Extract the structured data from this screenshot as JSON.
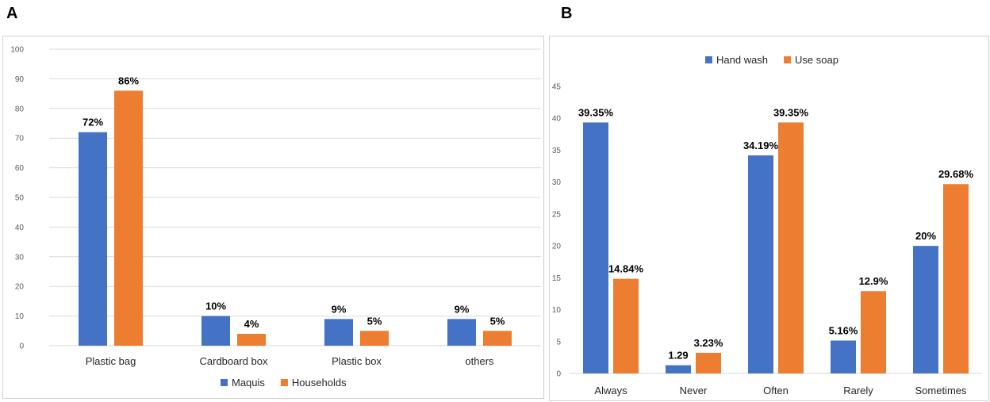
{
  "panels": {
    "a": "A",
    "b": "B"
  },
  "colors": {
    "blue": "#4472C4",
    "orange": "#ED7D31",
    "grid": "#D9D9D9"
  },
  "chart_data": [
    {
      "type": "bar",
      "panel": "A",
      "title": "",
      "xlabel": "",
      "ylabel": "",
      "categories": [
        "Plastic bag",
        "Cardboard box",
        "Plastic box",
        "others"
      ],
      "series": [
        {
          "name": "Maquis",
          "values": [
            72,
            10,
            9,
            9
          ],
          "labels": [
            "72%",
            "10%",
            "9%",
            "9%"
          ]
        },
        {
          "name": "Households",
          "values": [
            86,
            4,
            5,
            5
          ],
          "labels": [
            "86%",
            "4%",
            "5%",
            "5%"
          ]
        }
      ],
      "yticks": [
        0,
        10,
        20,
        30,
        40,
        50,
        60,
        70,
        80,
        90,
        100
      ],
      "ylim": [
        0,
        100
      ],
      "grid": true,
      "legend": "bottom"
    },
    {
      "type": "bar",
      "panel": "B",
      "title": "",
      "xlabel": "",
      "ylabel": "",
      "categories": [
        "Always",
        "Never",
        "Often",
        "Rarely",
        "Sometimes"
      ],
      "series": [
        {
          "name": "Hand wash",
          "values": [
            39.35,
            1.29,
            34.19,
            5.16,
            20
          ],
          "labels": [
            "39.35%",
            "1.29",
            "34.19%",
            "5.16%",
            "20%"
          ]
        },
        {
          "name": "Use soap",
          "values": [
            14.84,
            3.23,
            39.35,
            12.9,
            29.68
          ],
          "labels": [
            "14.84%",
            "3.23%",
            "39.35%",
            "12.9%",
            "29.68%"
          ]
        }
      ],
      "yticks": [
        0,
        5,
        10,
        15,
        20,
        25,
        30,
        35,
        40,
        45
      ],
      "ylim": [
        0,
        45
      ],
      "grid": false,
      "legend": "top"
    }
  ]
}
